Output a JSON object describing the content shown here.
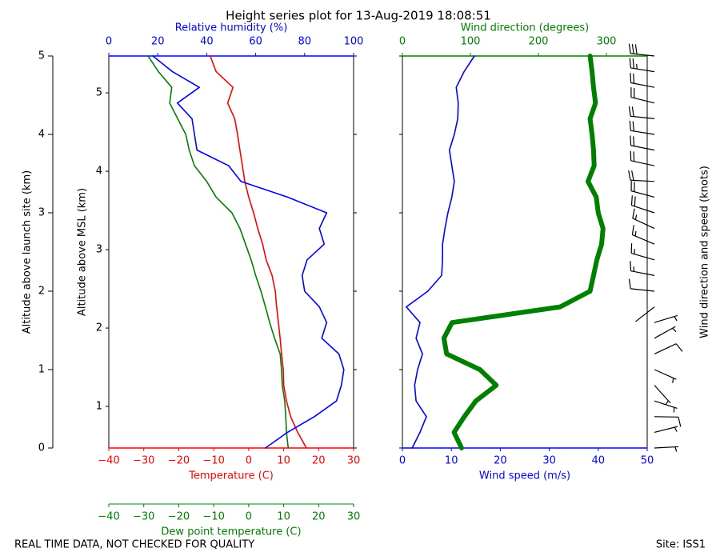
{
  "title": "Height series plot for 13-Aug-2019 18:08:51",
  "footer_left": "REAL TIME DATA, NOT CHECKED FOR QUALITY",
  "footer_right": "Site: ISS1",
  "chart_data": [
    {
      "type": "line",
      "y_label": "Altitude above launch site (km)",
      "ylim": [
        0,
        5
      ],
      "yticks": [
        0,
        1,
        2,
        3,
        4,
        5
      ],
      "y2_label": "Altitude above MSL (km)",
      "y2lim": [
        0.47,
        5.47
      ],
      "y2ticks": [
        1,
        2,
        3,
        4,
        5
      ],
      "y": [
        0,
        0.2,
        0.4,
        0.6,
        0.8,
        1.0,
        1.2,
        1.4,
        1.6,
        1.8,
        2.0,
        2.2,
        2.4,
        2.6,
        2.8,
        3.0,
        3.2,
        3.4,
        3.6,
        3.8,
        4.0,
        4.2,
        4.4,
        4.6,
        4.8,
        5.0
      ],
      "axes": [
        {
          "label": "Temperature (C)",
          "position": "bottom",
          "color": "#ff0000",
          "xlim": [
            -40,
            30
          ],
          "xticks": [
            {
              "value": -40,
              "label": "−40"
            },
            {
              "value": -30,
              "label": "−30"
            },
            {
              "value": -20,
              "label": "−20"
            },
            {
              "value": -10,
              "label": "−10"
            },
            0,
            10,
            20,
            30
          ]
        },
        {
          "label": "Dew point temperature (C)",
          "position": "bottom2",
          "color": "#008000",
          "xlim": [
            -40,
            30
          ],
          "xticks": [
            {
              "value": -40,
              "label": "−40"
            },
            {
              "value": -30,
              "label": "−30"
            },
            {
              "value": -20,
              "label": "−20"
            },
            {
              "value": -10,
              "label": "−10"
            },
            0,
            10,
            20,
            30
          ]
        },
        {
          "label": "Relative humidity (%)",
          "position": "top",
          "color": "#0000ff",
          "xlim": [
            0,
            100
          ],
          "xticks": [
            0,
            20,
            40,
            60,
            80,
            100
          ]
        }
      ],
      "series": [
        {
          "axis": 0,
          "color": "#ff0000",
          "values": [
            16.5,
            14,
            12,
            10.8,
            10,
            9.9,
            9.4,
            9,
            8.5,
            8,
            7.6,
            6.7,
            5,
            4,
            2.6,
            1.4,
            0,
            -1.1,
            -1.8,
            -2.5,
            -3.2,
            -4,
            -6,
            -4.5,
            -9.3,
            -11
          ]
        },
        {
          "axis": 1,
          "color": "#008000",
          "values": [
            11.3,
            10.8,
            10.6,
            10.3,
            9.6,
            9.4,
            9,
            7.4,
            6,
            4.8,
            3.5,
            2,
            0.7,
            -0.9,
            -2.5,
            -4.8,
            -9.3,
            -12,
            -15.5,
            -17,
            -18,
            -20.3,
            -22.6,
            -22,
            -25.8,
            -28.8
          ]
        },
        {
          "axis": 2,
          "color": "#0000ff",
          "values": [
            64,
            73,
            84,
            93,
            95,
            96,
            94,
            87,
            89,
            86,
            80,
            79,
            81,
            88,
            86,
            89,
            73,
            54,
            49,
            36,
            35,
            34,
            28,
            37,
            26,
            18
          ]
        }
      ]
    },
    {
      "type": "wind",
      "ylim": [
        0,
        5
      ],
      "barb_label": "Wind direction and speed (knots)",
      "y": [
        0,
        0.2,
        0.4,
        0.6,
        0.8,
        1.0,
        1.2,
        1.4,
        1.6,
        1.8,
        2.0,
        2.2,
        2.4,
        2.6,
        2.8,
        3.0,
        3.2,
        3.4,
        3.6,
        3.8,
        4.0,
        4.2,
        4.4,
        4.6,
        4.8,
        5.0
      ],
      "axes": [
        {
          "label": "Wind speed (m/s)",
          "position": "bottom",
          "color": "#0000ff",
          "xlim": [
            0,
            50
          ],
          "xticks": [
            0,
            10,
            20,
            30,
            40,
            50
          ]
        },
        {
          "label": "Wind direction (degrees)",
          "position": "top",
          "color": "#008000",
          "xlim": [
            0,
            360
          ],
          "xticks": [
            0,
            100,
            200,
            300
          ]
        }
      ],
      "series": [
        {
          "axis": 0,
          "color": "#0000ff",
          "values": [
            2,
            3.6,
            4.9,
            2.8,
            2.5,
            3.1,
            4.1,
            2.8,
            3.6,
            0.8,
            5.2,
            8,
            8.2,
            8.2,
            8.7,
            9.3,
            10.1,
            10.6,
            10.1,
            9.6,
            10.6,
            11.3,
            11.4,
            11,
            12.6,
            14.7
          ]
        },
        {
          "axis": 1,
          "color": "#008000",
          "style": "thick",
          "values": [
            87,
            76,
            91,
            108,
            138,
            114,
            65,
            61,
            73,
            232,
            276,
            281,
            286,
            293,
            295,
            288,
            285,
            273,
            282,
            281,
            279,
            276,
            284,
            281,
            279,
            276
          ]
        }
      ]
    }
  ]
}
